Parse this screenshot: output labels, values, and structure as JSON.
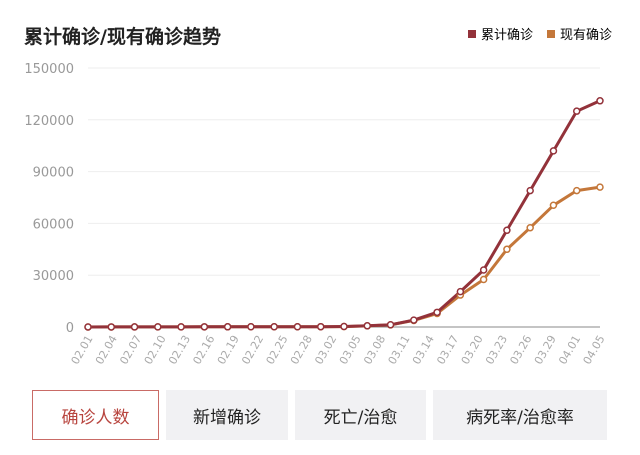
{
  "title": "累计确诊/现有确诊趋势",
  "colors": {
    "cumulative": "#93323a",
    "current": "#c4773a",
    "axis_text": "#999999",
    "grid": "#eeeeee"
  },
  "legend": [
    {
      "label": "累计确诊",
      "color": "#93323a"
    },
    {
      "label": "现有确诊",
      "color": "#c4773a"
    }
  ],
  "tabs": [
    {
      "label": "确诊人数",
      "active": true
    },
    {
      "label": "新增确诊",
      "active": false
    },
    {
      "label": "死亡/治愈",
      "active": false
    },
    {
      "label": "病死率/治愈率",
      "active": false
    }
  ],
  "chart_data": {
    "type": "line",
    "x_tick_labels": [
      "02.01",
      "02.04",
      "02.07",
      "02.10",
      "02.13",
      "02.16",
      "02.19",
      "02.22",
      "02.25",
      "02.28",
      "03.02",
      "03.05",
      "03.08",
      "03.11",
      "03.14",
      "03.17",
      "03.20",
      "03.23",
      "03.26",
      "03.29",
      "04.01",
      "04.05"
    ],
    "y_tick_labels": [
      "0",
      "30000",
      "60000",
      "90000",
      "120000",
      "150000"
    ],
    "ylim": [
      0,
      150000
    ],
    "series": [
      {
        "name": "累计确诊",
        "color": "#93323a",
        "values": [
          20,
          30,
          40,
          60,
          80,
          100,
          120,
          130,
          140,
          150,
          170,
          280,
          700,
          1300,
          4000,
          8500,
          20500,
          33000,
          56000,
          79000,
          102000,
          125000,
          131000
        ]
      },
      {
        "name": "现有确诊",
        "color": "#c4773a",
        "values": [
          20,
          30,
          40,
          60,
          80,
          100,
          120,
          130,
          140,
          150,
          170,
          260,
          650,
          1200,
          3800,
          7800,
          18500,
          27500,
          45000,
          57500,
          70500,
          79000,
          81000
        ]
      }
    ],
    "grid": true,
    "legend_position": "top-right"
  }
}
